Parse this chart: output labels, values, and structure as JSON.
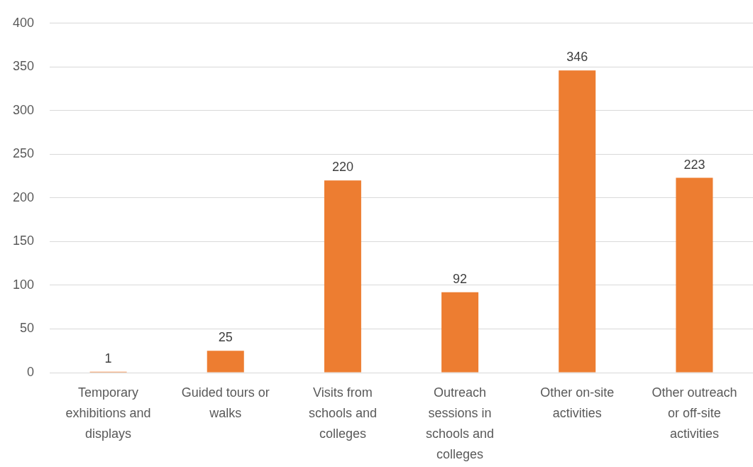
{
  "chart_data": {
    "type": "bar",
    "categories": [
      "Temporary exhibitions and displays",
      "Guided tours or walks",
      "Visits from schools and colleges",
      "Outreach sessions in schools and colleges",
      "Other on-site activities",
      "Other outreach or off-site activities"
    ],
    "values": [
      1,
      25,
      220,
      92,
      346,
      223
    ],
    "color": "#ed7d31",
    "ylim": [
      0,
      400
    ],
    "yticks": [
      0,
      50,
      100,
      150,
      200,
      250,
      300,
      350,
      400
    ],
    "grid": "y",
    "data_labels": true
  }
}
